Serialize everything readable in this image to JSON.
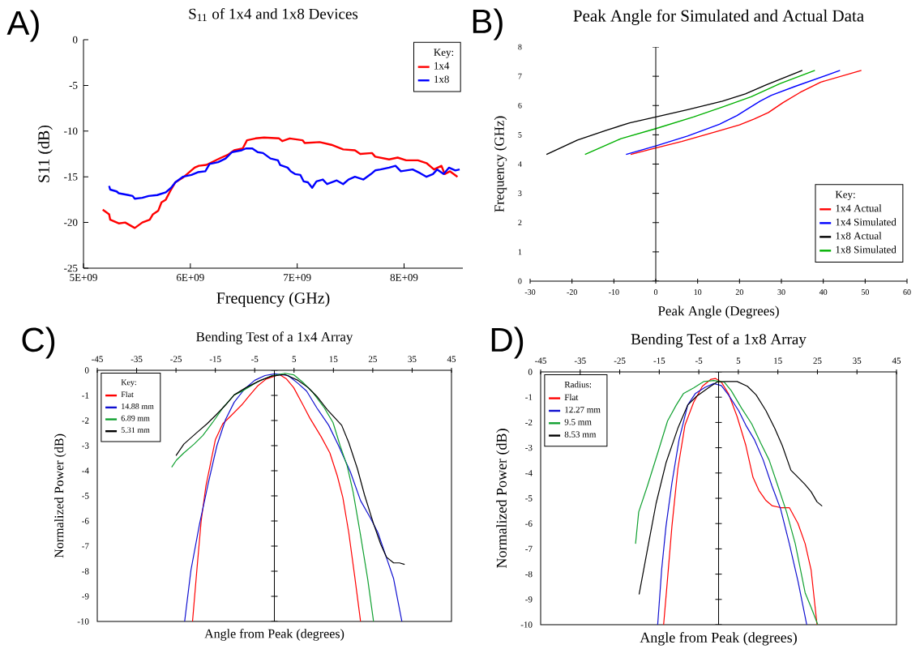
{
  "chart_data": [
    {
      "type": "line",
      "title": "S$_{11}$ of 1x4 and 1x8 Devices",
      "xlabel": "Frequency (GHz)",
      "ylabel": "S11 (dB)",
      "legend_title": "Key:",
      "legend": "top right",
      "annotations": [
        "A)"
      ],
      "xlim": [
        5000000000.0,
        8550000000.0
      ],
      "xticks": [
        {
          "value": 5000000000.0,
          "label": "5E+09"
        },
        {
          "value": 6000000000.0,
          "label": "6E+09"
        },
        {
          "value": 7000000000.0,
          "label": "7E+09"
        },
        {
          "value": 8000000000.0,
          "label": "8E+09"
        }
      ],
      "ylim": [
        -25,
        0
      ],
      "yticks": [
        -25,
        -20,
        -15,
        -10,
        -5,
        0
      ],
      "series": [
        {
          "name": "1x4",
          "color": "#ff0000",
          "x": [
            5180000000.0,
            5240000000.0,
            5250000000.0,
            5330000000.0,
            5390000000.0,
            5480000000.0,
            5550000000.0,
            5620000000.0,
            5650000000.0,
            5700000000.0,
            5730000000.0,
            5770000000.0,
            5810000000.0,
            5860000000.0,
            5930000000.0,
            6000000000.0,
            6040000000.0,
            6080000000.0,
            6150000000.0,
            6220000000.0,
            6290000000.0,
            6350000000.0,
            6410000000.0,
            6490000000.0,
            6530000000.0,
            6610000000.0,
            6690000000.0,
            6830000000.0,
            6860000000.0,
            6930000000.0,
            7050000000.0,
            7070000000.0,
            7210000000.0,
            7320000000.0,
            7430000000.0,
            7540000000.0,
            7590000000.0,
            7700000000.0,
            7730000000.0,
            7860000000.0,
            7940000000.0,
            8020000000.0,
            8130000000.0,
            8210000000.0,
            8280000000.0,
            8350000000.0,
            8380000000.0,
            8430000000.0,
            8500000000.0
          ],
          "values": [
            -18.6,
            -19.1,
            -19.7,
            -20.1,
            -20.0,
            -20.6,
            -20.0,
            -19.7,
            -19.1,
            -18.7,
            -17.8,
            -17.5,
            -16.6,
            -15.6,
            -15.1,
            -14.4,
            -14.0,
            -13.8,
            -13.7,
            -13.3,
            -12.9,
            -12.6,
            -12.1,
            -11.9,
            -11.0,
            -10.8,
            -10.7,
            -10.8,
            -11.1,
            -10.8,
            -11.0,
            -11.3,
            -11.2,
            -11.5,
            -12.0,
            -12.1,
            -12.5,
            -12.4,
            -12.8,
            -13.1,
            -12.9,
            -13.2,
            -13.2,
            -13.5,
            -14.2,
            -13.8,
            -14.7,
            -14.4,
            -15.0
          ]
        },
        {
          "name": "1x8",
          "color": "#0000ff",
          "x": [
            5240000000.0,
            5250000000.0,
            5310000000.0,
            5330000000.0,
            5420000000.0,
            5460000000.0,
            5480000000.0,
            5550000000.0,
            5610000000.0,
            5690000000.0,
            5770000000.0,
            5820000000.0,
            5860000000.0,
            5930000000.0,
            6010000000.0,
            6070000000.0,
            6140000000.0,
            6180000000.0,
            6260000000.0,
            6330000000.0,
            6390000000.0,
            6480000000.0,
            6520000000.0,
            6580000000.0,
            6630000000.0,
            6680000000.0,
            6750000000.0,
            6820000000.0,
            6840000000.0,
            6910000000.0,
            6940000000.0,
            6980000000.0,
            7030000000.0,
            7060000000.0,
            7100000000.0,
            7140000000.0,
            7180000000.0,
            7240000000.0,
            7280000000.0,
            7370000000.0,
            7430000000.0,
            7480000000.0,
            7540000000.0,
            7620000000.0,
            7690000000.0,
            7730000000.0,
            7780000000.0,
            7860000000.0,
            7920000000.0,
            7970000000.0,
            8080000000.0,
            8150000000.0,
            8210000000.0,
            8270000000.0,
            8310000000.0,
            8370000000.0,
            8420000000.0,
            8480000000.0,
            8520000000.0
          ],
          "values": [
            -16.0,
            -16.4,
            -16.6,
            -16.8,
            -17.0,
            -17.1,
            -17.4,
            -17.3,
            -17.1,
            -17.0,
            -16.7,
            -16.2,
            -15.6,
            -15.0,
            -14.8,
            -14.5,
            -14.4,
            -13.6,
            -13.4,
            -13.0,
            -12.3,
            -12.1,
            -11.9,
            -11.9,
            -12.3,
            -12.4,
            -13.0,
            -13.2,
            -13.7,
            -14.0,
            -14.4,
            -14.7,
            -14.8,
            -15.5,
            -15.6,
            -16.2,
            -15.5,
            -15.3,
            -15.8,
            -15.4,
            -15.8,
            -15.3,
            -15.0,
            -15.3,
            -14.7,
            -14.3,
            -14.2,
            -14.0,
            -13.8,
            -14.4,
            -14.2,
            -14.6,
            -15.0,
            -14.7,
            -14.2,
            -14.7,
            -14.0,
            -14.3,
            -14.2
          ]
        }
      ]
    },
    {
      "type": "line",
      "title": "Peak Angle for Simulated and Actual Data",
      "xlabel": "Peak Angle (Degrees)",
      "ylabel": "Frequency (GHz)",
      "legend_title": "Key:",
      "legend": "bottom right",
      "annotations": [
        "B)"
      ],
      "xlim": [
        -30,
        60
      ],
      "xticks": [
        -30,
        -20,
        -10,
        0,
        10,
        20,
        30,
        40,
        50,
        60
      ],
      "ylim": [
        0,
        8
      ],
      "yticks": [
        0,
        1,
        2,
        3,
        4,
        5,
        6,
        7,
        8
      ],
      "series": [
        {
          "name": "1x4 Actual",
          "color": "#ff0000",
          "x": [
            -6.0,
            0,
            6.2,
            14.5,
            20.0,
            23.5,
            26.9,
            30.4,
            34.5,
            39.4,
            49.1
          ],
          "values": [
            4.33,
            4.55,
            4.77,
            5.11,
            5.34,
            5.54,
            5.76,
            6.1,
            6.45,
            6.8,
            7.2
          ]
        },
        {
          "name": "1x4 Simulated",
          "color": "#0000ff",
          "x": [
            -7.1,
            0,
            7.6,
            15.2,
            19.4,
            22.1,
            24.9,
            27.6,
            33.2,
            44.0
          ],
          "values": [
            4.33,
            4.62,
            4.96,
            5.36,
            5.66,
            5.9,
            6.15,
            6.35,
            6.65,
            7.2
          ]
        },
        {
          "name": "1x8 Actual",
          "color": "#000000",
          "x": [
            -26.1,
            -18.7,
            -11.7,
            -6.2,
            0,
            7.6,
            15.9,
            21.4,
            26.3,
            35.0
          ],
          "values": [
            4.33,
            4.82,
            5.16,
            5.41,
            5.61,
            5.86,
            6.15,
            6.4,
            6.7,
            7.2
          ]
        },
        {
          "name": "1x8 Simulated",
          "color": "#00b000",
          "x": [
            -16.9,
            -8.3,
            0,
            9.0,
            15.9,
            22.8,
            29.7,
            38.0
          ],
          "values": [
            4.33,
            4.87,
            5.21,
            5.61,
            5.95,
            6.3,
            6.75,
            7.2
          ]
        }
      ]
    },
    {
      "type": "line",
      "title": "Bending Test of a 1x4 Array",
      "xlabel": "Angle from Peak (degrees)",
      "ylabel": "Normalized Power (dB)",
      "legend_title": "Key:",
      "legend": "top left",
      "annotations": [
        "C)"
      ],
      "xlim": [
        -45,
        45
      ],
      "xticks": [
        -45,
        -35,
        -25,
        -15,
        -5,
        5,
        15,
        25,
        35,
        45
      ],
      "ylim": [
        -10,
        0
      ],
      "yticks": [
        -10,
        -9,
        -8,
        -7,
        -6,
        -5,
        -4,
        -3,
        -2,
        -1,
        0
      ],
      "series": [
        {
          "name": "Flat",
          "color": "#ff0000",
          "x": [
            -20.8,
            -19.7,
            -18.6,
            -17.4,
            -15.0,
            -13.1,
            -10.9,
            -8.3,
            -6.5,
            -4.3,
            -2.1,
            1.3,
            3.1,
            4.9,
            7.1,
            9.0,
            11.9,
            14.1,
            16.0,
            17.4,
            18.9,
            20.4,
            21.9
          ],
          "values": [
            -10,
            -7.96,
            -6.0,
            -4.61,
            -2.77,
            -2.13,
            -1.79,
            -1.38,
            -1.04,
            -0.63,
            -0.35,
            -0.17,
            -0.35,
            -0.69,
            -1.33,
            -1.9,
            -2.65,
            -3.29,
            -4.21,
            -5.07,
            -6.46,
            -8.19,
            -10
          ]
        },
        {
          "name": "14.88 mm",
          "color": "#1010d0",
          "x": [
            -22.8,
            -21.2,
            -19.0,
            -16.8,
            -14.6,
            -12.4,
            -10.2,
            -7.6,
            -5.0,
            -2.4,
            0.1,
            3.5,
            6.0,
            8.2,
            10.8,
            13.8,
            16.3,
            19.3,
            21.9,
            24.4,
            26.3,
            28.8,
            30.3,
            32.4
          ],
          "values": [
            -10,
            -7.96,
            -6.11,
            -4.5,
            -3.0,
            -1.96,
            -1.27,
            -0.75,
            -0.4,
            -0.21,
            -0.14,
            -0.21,
            -0.52,
            -0.83,
            -1.5,
            -2.19,
            -3.0,
            -4.04,
            -5.19,
            -5.88,
            -6.46,
            -7.61,
            -8.3,
            -10
          ]
        },
        {
          "name": "6.89 mm",
          "color": "#10a030",
          "x": [
            -26.1,
            -24.9,
            -23.0,
            -20.4,
            -18.2,
            -15.7,
            -13.1,
            -10.2,
            -7.9,
            -4.3,
            -0.6,
            2.7,
            4.9,
            7.1,
            9.7,
            12.7,
            14.9,
            16.7,
            18.5,
            20.0,
            21.9,
            23.7,
            25.2
          ],
          "values": [
            -3.86,
            -3.58,
            -3.29,
            -2.94,
            -2.6,
            -2.08,
            -1.5,
            -0.98,
            -0.81,
            -0.46,
            -0.21,
            -0.12,
            -0.18,
            -0.46,
            -0.87,
            -1.5,
            -2.08,
            -3.0,
            -3.81,
            -4.84,
            -6.57,
            -8.3,
            -10
          ]
        },
        {
          "name": "5.31 mm",
          "color": "#000000",
          "x": [
            -25.0,
            -23.0,
            -19.7,
            -17.1,
            -14.9,
            -12.4,
            -10.2,
            -7.2,
            -3.5,
            -0.6,
            2.7,
            6.0,
            8.6,
            10.8,
            13.4,
            17.1,
            18.9,
            21.1,
            22.9,
            25.2,
            27.0,
            28.5,
            30.3,
            31.8,
            33.1
          ],
          "values": [
            -3.4,
            -2.94,
            -2.48,
            -2.13,
            -1.79,
            -1.38,
            -0.98,
            -0.69,
            -0.4,
            -0.23,
            -0.17,
            -0.4,
            -0.69,
            -1.04,
            -1.56,
            -2.19,
            -2.88,
            -3.92,
            -4.96,
            -6.11,
            -6.92,
            -7.44,
            -7.67,
            -7.67,
            -7.73
          ]
        }
      ]
    },
    {
      "type": "line",
      "title": "Bending Test of a 1x8 Array",
      "xlabel": "Angle from Peak (degrees)",
      "ylabel": "Normalized Power (dB)",
      "legend_title": "Radius:",
      "legend": "top left",
      "annotations": [
        "D)"
      ],
      "xlim": [
        -45,
        45
      ],
      "xticks": [
        -45,
        -35,
        -25,
        -15,
        -5,
        5,
        15,
        25,
        35,
        45
      ],
      "ylim": [
        -10,
        0
      ],
      "yticks": [
        -10,
        -9,
        -8,
        -7,
        -6,
        -5,
        -4,
        -3,
        -2,
        -1,
        0
      ],
      "series": [
        {
          "name": "Flat",
          "color": "#ff0000",
          "x": [
            -13.9,
            -12.9,
            -11.8,
            -10.3,
            -8.5,
            -6.3,
            -4.1,
            -1.9,
            -0.8,
            0.7,
            2.5,
            4.7,
            6.9,
            8.7,
            10.2,
            12.0,
            13.5,
            15.7,
            17.9,
            20.1,
            21.9,
            23.4,
            24.9
          ],
          "values": [
            -10,
            -8.17,
            -6.11,
            -3.83,
            -2.11,
            -1.2,
            -0.57,
            -0.29,
            -0.26,
            -0.4,
            -0.86,
            -1.77,
            -2.91,
            -4.17,
            -4.69,
            -5.09,
            -5.29,
            -5.37,
            -5.37,
            -6.0,
            -6.8,
            -7.83,
            -10
          ]
        },
        {
          "name": "12.27 mm",
          "color": "#1010d0",
          "x": [
            -15.4,
            -14.4,
            -13.3,
            -11.8,
            -10.0,
            -7.8,
            -5.9,
            -3.4,
            -1.2,
            0.7,
            2.5,
            5.1,
            6.9,
            9.1,
            11.3,
            13.5,
            15.7,
            17.9,
            20.1,
            22.3
          ],
          "values": [
            -10,
            -7.83,
            -6.11,
            -4.4,
            -2.69,
            -1.31,
            -0.86,
            -0.61,
            -0.46,
            -0.54,
            -0.91,
            -1.54,
            -2.11,
            -2.69,
            -3.49,
            -4.51,
            -5.43,
            -6.8,
            -8.29,
            -10
          ]
        },
        {
          "name": "9.5 mm",
          "color": "#10a030",
          "x": [
            -21.0,
            -20.2,
            -18.0,
            -15.5,
            -12.9,
            -10.7,
            -8.9,
            -6.3,
            -3.7,
            -1.2,
            1.4,
            3.2,
            5.8,
            8.4,
            10.6,
            12.8,
            15.0,
            17.2,
            19.4,
            21.9,
            23.4,
            25.1
          ],
          "values": [
            -6.8,
            -5.54,
            -4.51,
            -3.26,
            -1.94,
            -1.31,
            -0.86,
            -0.63,
            -0.38,
            -0.34,
            -0.4,
            -0.74,
            -1.43,
            -2.06,
            -2.8,
            -3.49,
            -4.51,
            -5.54,
            -6.8,
            -8.74,
            -9.31,
            -10
          ]
        },
        {
          "name": "8.53 mm",
          "color": "#000000",
          "x": [
            -20.1,
            -18.0,
            -15.8,
            -13.3,
            -10.3,
            -7.8,
            -5.6,
            -2.6,
            -0.4,
            1.8,
            4.7,
            7.3,
            9.5,
            12.0,
            14.2,
            16.1,
            18.3,
            20.1,
            21.9,
            23.4,
            24.9,
            26.2
          ],
          "values": [
            -8.8,
            -7.03,
            -5.2,
            -3.6,
            -2.23,
            -1.31,
            -0.97,
            -0.63,
            -0.4,
            -0.38,
            -0.38,
            -0.57,
            -0.91,
            -1.54,
            -2.23,
            -2.91,
            -3.89,
            -4.17,
            -4.46,
            -4.74,
            -5.14,
            -5.31
          ]
        }
      ]
    }
  ]
}
